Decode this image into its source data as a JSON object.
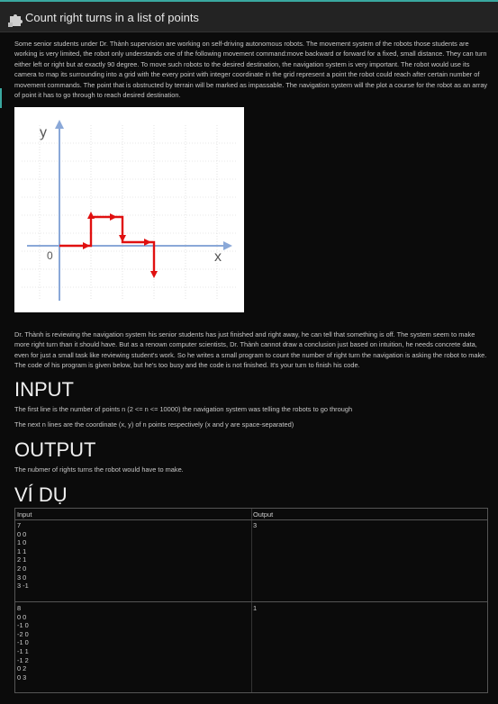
{
  "header": {
    "title": "Count right turns in a list of points",
    "icon": "puzzle-icon",
    "accent_color": "#3aa8a0"
  },
  "intro": "Some senior students under Dr. Thành supervision are working on self-driving autonomous robots. The movement system of the robots those students are working is very limited, the robot only understands one of the following movement command:move backward or forward for a fixed, small distance. They can turn either left or right but at exactly 90 degree. To move such robots to the desired destination, the navigation system is very important. The robot would use its camera to map its surrounding into a grid with the every point with integer coordinate in the grid represent a point the robot could reach after certain number of movement commands. The point that is obstructed by terrain will be marked as impassable. The navigation system will the plot a course for the robot as an array of point it has to go through to reach desired destination.",
  "figure": {
    "y_label": "y",
    "x_label": "x",
    "origin_label": "0"
  },
  "description": "Dr. Thành is reviewing the navigation system his senior students has just finished and right away, he can tell that something is off. The system seem to make more right turn than it should have. But as a renown computer scientists, Dr. Thành cannot draw a conclusion just based on intuition, he needs concrete data, even for just a small task like reviewing student's work. So he writes a small program to count the number of right turn the navigation is asking the robot to make. The code of his program is given below, but he's too busy and the code is not finished. It's your turn to finish his code.",
  "input_section": {
    "heading": "INPUT",
    "line1": "The first line is the number of points n (2 <= n <= 10000) the navigation system was telling the robots to go through",
    "line2": "The next n lines are the coordinate (x, y) of n points respectively (x and y are space-separated)"
  },
  "output_section": {
    "heading": "OUTPUT",
    "line1": "The nubmer of rights turns the robot would have to make."
  },
  "example_section": {
    "heading": "VÍ DỤ",
    "col_input": "Input",
    "col_output": "Output",
    "rows": [
      {
        "input": "7\n0 0\n1 0\n1 1\n2 1\n2 0\n3 0\n3 -1",
        "output": "3"
      },
      {
        "input": "8\n0 0\n-1 0\n-2 0\n-1 0\n-1 1\n-1 2\n0 2\n0 3",
        "output": "1"
      }
    ]
  }
}
